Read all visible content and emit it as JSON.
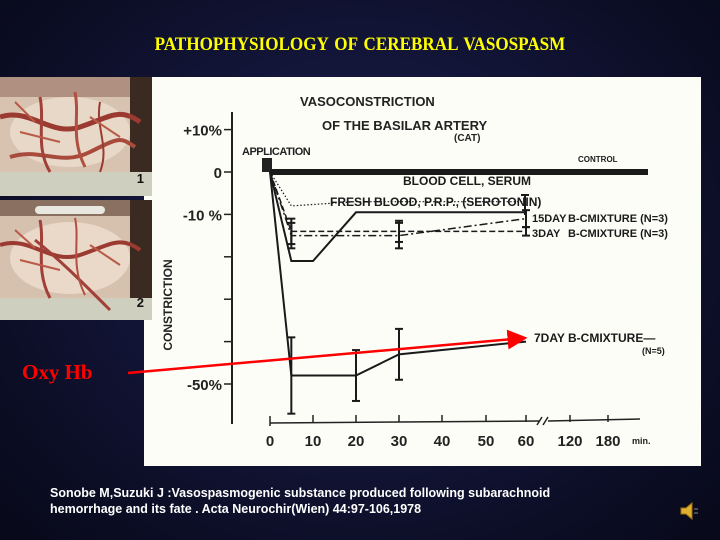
{
  "slide": {
    "title": "PATHOPHYSIOLOGY  OF  CEREBRAL VASOSPASM",
    "annotation_label": "Oxy Hb",
    "annotation_color": "#ff0000",
    "title_color": "#ffff00",
    "photos": [
      {
        "label": "1"
      },
      {
        "label": "2"
      }
    ],
    "citation_line1": "Sonobe M,Suzuki J :Vasospasmogenic substance produced following subarachnoid",
    "citation_line2": "hemorrhage and its fate . Acta Neurochir(Wien) 44:97-106,1978",
    "speaker_icon": "speaker-icon"
  },
  "chart_data": {
    "type": "line",
    "title": "VASOCONSTRICTION OF THE BASILAR ARTERY",
    "subtitle": "(CAT)",
    "xlabel": "min.",
    "ylabel": "CONSTRICTION",
    "x_ticks": [
      "0",
      "10",
      "20",
      "30",
      "40",
      "50",
      "60",
      "120",
      "180"
    ],
    "x_tick_values": [
      0,
      10,
      20,
      30,
      40,
      50,
      60,
      120,
      180
    ],
    "x_axis_break_between": [
      60,
      120
    ],
    "y_tick_labels": [
      "+10%",
      "0",
      "-10 %",
      "-50%"
    ],
    "y_tick_values": [
      10,
      0,
      -10,
      -50
    ],
    "ylim": [
      -58,
      12
    ],
    "marker_label": "APPLICATION",
    "marker_x": 0,
    "grid": false,
    "legend_position": "inline-right",
    "series": [
      {
        "name": "CONTROL",
        "style": "thick-solid",
        "x": [
          0,
          180
        ],
        "y": [
          0,
          0
        ]
      },
      {
        "name": "BLOOD CELL, SERUM",
        "style": "dotted",
        "x": [
          0,
          5,
          20,
          60
        ],
        "y": [
          0,
          -8,
          -7,
          -7
        ]
      },
      {
        "name": "FRESH BLOOD, P.R.P., (SEROTONIN)",
        "style": "solid",
        "x": [
          0,
          5,
          10,
          20,
          60
        ],
        "y": [
          0,
          -21,
          -21,
          -9.5,
          -9.5
        ]
      },
      {
        "name": "15DAY B-C MIXTURE",
        "n_label": "(N=3)",
        "style": "dash-dot",
        "x": [
          0,
          5,
          30,
          60
        ],
        "y": [
          0,
          -15,
          -15,
          -11
        ],
        "err": [
          3,
          3,
          2
        ]
      },
      {
        "name": "3DAY B-C MIXTURE",
        "n_label": "(N=3)",
        "style": "dashed",
        "x": [
          0,
          5,
          30,
          60
        ],
        "y": [
          0,
          -14,
          -14,
          -14
        ],
        "err": [
          3,
          2.5,
          1
        ]
      },
      {
        "name": "7DAY B-C MIXTURE",
        "n_label": "(N=5)",
        "style": "solid",
        "x": [
          0,
          5,
          20,
          30,
          60
        ],
        "y": [
          0,
          -48,
          -48,
          -43,
          -40
        ],
        "err": [
          9,
          6,
          6
        ]
      }
    ]
  }
}
